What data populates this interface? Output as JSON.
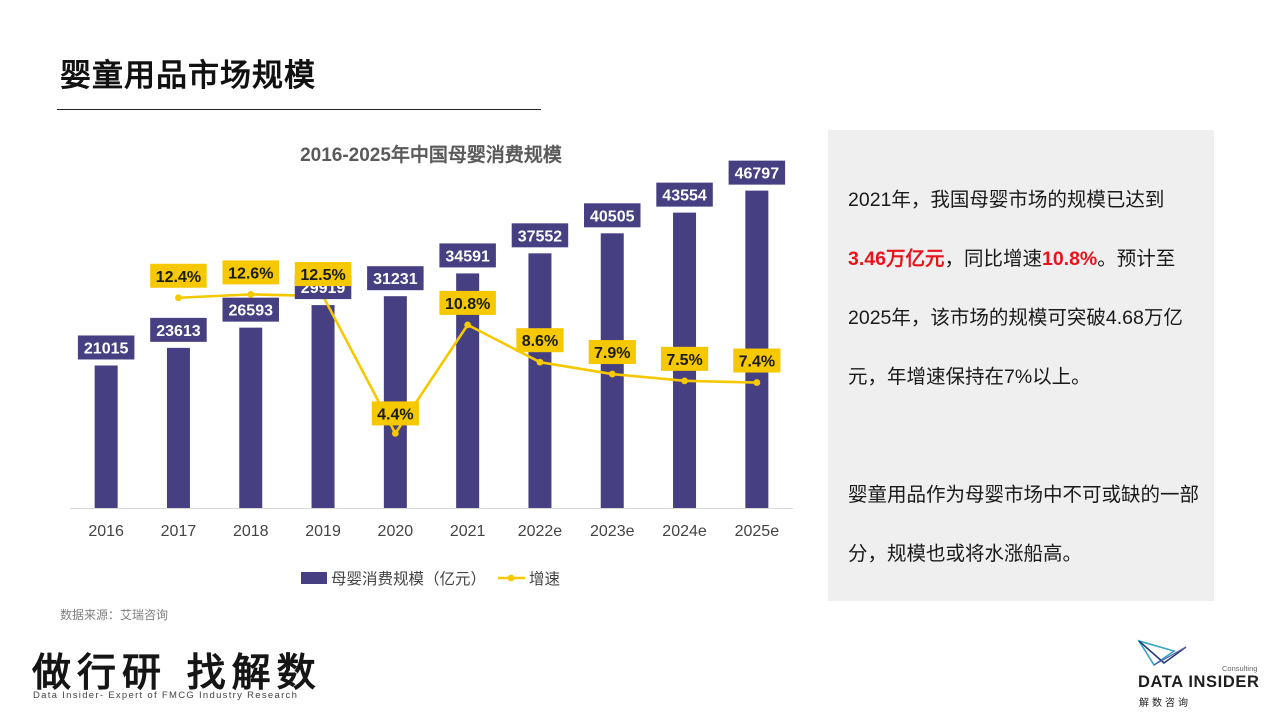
{
  "header": {
    "title": "婴童用品市场规模"
  },
  "chart_data": {
    "type": "bar",
    "title": "2016-2025年中国母婴消费规模",
    "categories": [
      "2016",
      "2017",
      "2018",
      "2019",
      "2020",
      "2021",
      "2022e",
      "2023e",
      "2024e",
      "2025e"
    ],
    "series": [
      {
        "name": "母婴消费规模（亿元）",
        "type": "bar",
        "values": [
          21015,
          23613,
          26593,
          29919,
          31231,
          34591,
          37552,
          40505,
          43554,
          46797
        ],
        "labels": [
          "21015",
          "23613",
          "26593",
          "29919",
          "31231",
          "34591",
          "37552",
          "40505",
          "43554",
          "46797"
        ],
        "color": "#463f82"
      },
      {
        "name": "增速",
        "type": "line",
        "values": [
          null,
          12.4,
          12.6,
          12.5,
          4.4,
          10.8,
          8.6,
          7.9,
          7.5,
          7.4
        ],
        "labels": [
          "",
          "12.4%",
          "12.6%",
          "12.5%",
          "4.4%",
          "10.8%",
          "8.6%",
          "7.9%",
          "7.5%",
          "7.4%"
        ],
        "color": "#f5c800"
      }
    ],
    "ylim": [
      0,
      55000
    ],
    "y2lim": [
      0,
      22
    ],
    "y_axis_visible": false,
    "grid": false,
    "legend_position": "bottom",
    "data_label_colors": {
      "bar_label_bg": "#463f82",
      "bar_label_text": "#ffffff",
      "line_label_bg": "#f5c800",
      "line_label_text": "#1a1a1a"
    }
  },
  "source": "数据来源：艾瑞咨询",
  "panel": {
    "para1": [
      {
        "text": "2021年，我国母婴市场的规模已达到",
        "hl": false
      },
      {
        "text": "3.46万亿元",
        "hl": true
      },
      {
        "text": "，同比增速",
        "hl": false
      },
      {
        "text": "10.8%",
        "hl": true
      },
      {
        "text": "。预计至2025年，该市场的规模可突破4.68万亿元，年增速保持在7%以上。",
        "hl": false
      }
    ],
    "para2": "婴童用品作为母婴市场中不可或缺的一部分，规模也或将水涨船高。",
    "highlight_color": "#e8141b"
  },
  "footer": {
    "slogan": "做行研 找解数",
    "slogan_sub": "Data Insider- Expert of FMCG Industry Research",
    "logo_consulting": "Consulting",
    "logo_main": "DATA INSIDER",
    "logo_cn": "解数咨询"
  }
}
